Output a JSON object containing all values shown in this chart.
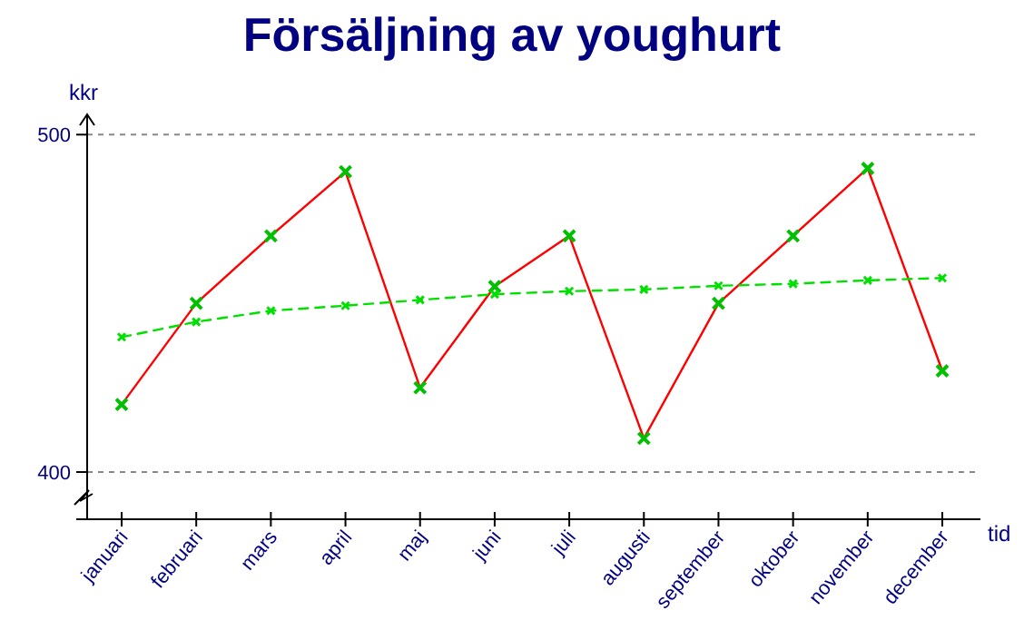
{
  "chart_data": {
    "type": "line",
    "title": "Försäljning av youghurt",
    "xlabel": "tid",
    "ylabel": "kkr",
    "categories": [
      "januari",
      "februari",
      "mars",
      "april",
      "maj",
      "juni",
      "juli",
      "augusti",
      "september",
      "oktober",
      "november",
      "december"
    ],
    "series": [
      {
        "color": "#ff0000",
        "marker": "cross",
        "line_style": "solid",
        "values": [
          420,
          450,
          470,
          489,
          425,
          455,
          470,
          410,
          450,
          470,
          490,
          430
        ]
      },
      {
        "color": "#00e000",
        "marker": "cross",
        "line_style": "dashed",
        "values": [
          440,
          444.5,
          447.8,
          449.3,
          451,
          452.7,
          453.6,
          454.1,
          455.2,
          455.8,
          456.8,
          457.5
        ]
      }
    ],
    "ylim": [
      386,
      506
    ],
    "yticks": [
      400,
      500
    ],
    "grid": "y"
  }
}
